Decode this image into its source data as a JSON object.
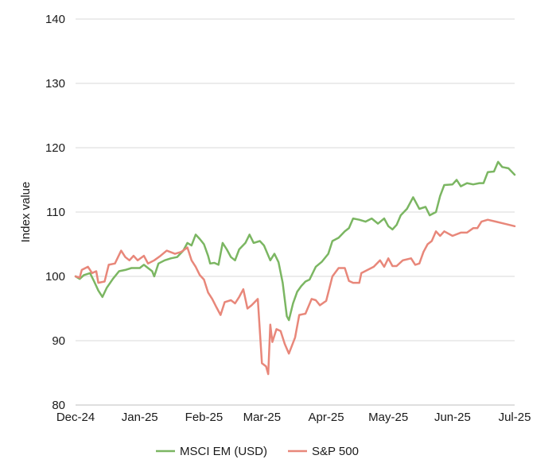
{
  "chart_data": {
    "type": "line",
    "ylabel": "Index value",
    "ylim": [
      80,
      140
    ],
    "yticks": [
      80,
      90,
      100,
      110,
      120,
      130,
      140
    ],
    "xlim": [
      "2024-12-01",
      "2025-07-01"
    ],
    "xticks": [
      {
        "date": "2024-12-01",
        "label": "Dec-24"
      },
      {
        "date": "2025-01-01",
        "label": "Jan-25"
      },
      {
        "date": "2025-02-01",
        "label": "Feb-25"
      },
      {
        "date": "2025-03-01",
        "label": "Mar-25"
      },
      {
        "date": "2025-04-01",
        "label": "Apr-25"
      },
      {
        "date": "2025-05-01",
        "label": "May-25"
      },
      {
        "date": "2025-06-01",
        "label": "Jun-25"
      },
      {
        "date": "2025-07-01",
        "label": "Jul-25"
      }
    ],
    "grid": {
      "horizontal": true,
      "vertical": false
    },
    "legend": {
      "position": "bottom"
    },
    "series": [
      {
        "name": "MSCI EM (USD)",
        "color": "#7bb662",
        "points": [
          [
            "2024-12-01",
            100.0
          ],
          [
            "2024-12-03",
            99.6
          ],
          [
            "2024-12-05",
            100.2
          ],
          [
            "2024-12-08",
            100.5
          ],
          [
            "2024-12-10",
            99.2
          ],
          [
            "2024-12-12",
            97.8
          ],
          [
            "2024-12-14",
            96.8
          ],
          [
            "2024-12-16",
            98.2
          ],
          [
            "2024-12-19",
            99.6
          ],
          [
            "2024-12-22",
            100.8
          ],
          [
            "2024-12-25",
            101.0
          ],
          [
            "2024-12-28",
            101.3
          ],
          [
            "2025-01-01",
            101.3
          ],
          [
            "2025-01-03",
            101.8
          ],
          [
            "2025-01-05",
            101.3
          ],
          [
            "2025-01-07",
            100.8
          ],
          [
            "2025-01-08",
            100.0
          ],
          [
            "2025-01-10",
            102.0
          ],
          [
            "2025-01-13",
            102.5
          ],
          [
            "2025-01-16",
            102.8
          ],
          [
            "2025-01-19",
            103.0
          ],
          [
            "2025-01-22",
            104.0
          ],
          [
            "2025-01-24",
            105.2
          ],
          [
            "2025-01-26",
            104.8
          ],
          [
            "2025-01-28",
            106.5
          ],
          [
            "2025-01-30",
            105.8
          ],
          [
            "2025-02-01",
            105.0
          ],
          [
            "2025-02-03",
            103.2
          ],
          [
            "2025-02-04",
            102.0
          ],
          [
            "2025-02-06",
            102.1
          ],
          [
            "2025-02-08",
            101.8
          ],
          [
            "2025-02-10",
            105.2
          ],
          [
            "2025-02-12",
            104.2
          ],
          [
            "2025-02-14",
            103.0
          ],
          [
            "2025-02-16",
            102.5
          ],
          [
            "2025-02-18",
            104.2
          ],
          [
            "2025-02-21",
            105.2
          ],
          [
            "2025-02-23",
            106.5
          ],
          [
            "2025-02-25",
            105.2
          ],
          [
            "2025-02-28",
            105.5
          ],
          [
            "2025-03-02",
            104.8
          ],
          [
            "2025-03-05",
            102.5
          ],
          [
            "2025-03-07",
            103.5
          ],
          [
            "2025-03-09",
            102.2
          ],
          [
            "2025-03-11",
            99.0
          ],
          [
            "2025-03-13",
            93.8
          ],
          [
            "2025-03-14",
            93.2
          ],
          [
            "2025-03-16",
            95.8
          ],
          [
            "2025-03-18",
            97.6
          ],
          [
            "2025-03-20",
            98.5
          ],
          [
            "2025-03-22",
            99.2
          ],
          [
            "2025-03-24",
            99.5
          ],
          [
            "2025-03-27",
            101.5
          ],
          [
            "2025-03-30",
            102.3
          ],
          [
            "2025-04-02",
            103.5
          ],
          [
            "2025-04-04",
            105.5
          ],
          [
            "2025-04-07",
            106.0
          ],
          [
            "2025-04-10",
            107.0
          ],
          [
            "2025-04-12",
            107.5
          ],
          [
            "2025-04-14",
            109.0
          ],
          [
            "2025-04-17",
            108.8
          ],
          [
            "2025-04-20",
            108.5
          ],
          [
            "2025-04-23",
            109.0
          ],
          [
            "2025-04-26",
            108.2
          ],
          [
            "2025-04-29",
            109.0
          ],
          [
            "2025-05-01",
            107.8
          ],
          [
            "2025-05-03",
            107.3
          ],
          [
            "2025-05-05",
            108.0
          ],
          [
            "2025-05-07",
            109.5
          ],
          [
            "2025-05-10",
            110.5
          ],
          [
            "2025-05-13",
            112.3
          ],
          [
            "2025-05-16",
            110.5
          ],
          [
            "2025-05-19",
            110.8
          ],
          [
            "2025-05-21",
            109.5
          ],
          [
            "2025-05-24",
            110.0
          ],
          [
            "2025-05-26",
            112.5
          ],
          [
            "2025-05-28",
            114.2
          ],
          [
            "2025-06-01",
            114.3
          ],
          [
            "2025-06-03",
            115.0
          ],
          [
            "2025-06-05",
            114.0
          ],
          [
            "2025-06-08",
            114.5
          ],
          [
            "2025-06-11",
            114.3
          ],
          [
            "2025-06-14",
            114.5
          ],
          [
            "2025-06-16",
            114.5
          ],
          [
            "2025-06-18",
            116.2
          ],
          [
            "2025-06-21",
            116.3
          ],
          [
            "2025-06-23",
            117.8
          ],
          [
            "2025-06-25",
            117.0
          ],
          [
            "2025-06-28",
            116.8
          ],
          [
            "2025-07-01",
            115.8
          ]
        ]
      },
      {
        "name": "S&P 500",
        "color": "#e8877a",
        "points": [
          [
            "2024-12-01",
            100.0
          ],
          [
            "2024-12-03",
            99.8
          ],
          [
            "2024-12-04",
            101.0
          ],
          [
            "2024-12-07",
            101.5
          ],
          [
            "2024-12-09",
            100.5
          ],
          [
            "2024-12-11",
            100.8
          ],
          [
            "2024-12-12",
            99.0
          ],
          [
            "2024-12-15",
            99.2
          ],
          [
            "2024-12-17",
            101.8
          ],
          [
            "2024-12-20",
            102.0
          ],
          [
            "2024-12-23",
            104.0
          ],
          [
            "2024-12-25",
            103.0
          ],
          [
            "2024-12-27",
            102.5
          ],
          [
            "2024-12-29",
            103.2
          ],
          [
            "2024-12-31",
            102.5
          ],
          [
            "2025-01-03",
            103.2
          ],
          [
            "2025-01-05",
            102.0
          ],
          [
            "2025-01-08",
            102.5
          ],
          [
            "2025-01-11",
            103.2
          ],
          [
            "2025-01-14",
            104.0
          ],
          [
            "2025-01-18",
            103.5
          ],
          [
            "2025-01-21",
            103.8
          ],
          [
            "2025-01-24",
            104.5
          ],
          [
            "2025-01-26",
            102.5
          ],
          [
            "2025-01-28",
            101.5
          ],
          [
            "2025-01-30",
            100.2
          ],
          [
            "2025-02-01",
            99.5
          ],
          [
            "2025-02-03",
            97.5
          ],
          [
            "2025-02-05",
            96.5
          ],
          [
            "2025-02-07",
            95.2
          ],
          [
            "2025-02-09",
            94.0
          ],
          [
            "2025-02-11",
            96.0
          ],
          [
            "2025-02-14",
            96.3
          ],
          [
            "2025-02-16",
            95.8
          ],
          [
            "2025-02-18",
            96.8
          ],
          [
            "2025-02-20",
            98.0
          ],
          [
            "2025-02-22",
            95.0
          ],
          [
            "2025-02-24",
            95.5
          ],
          [
            "2025-02-27",
            96.5
          ],
          [
            "2025-03-01",
            86.5
          ],
          [
            "2025-03-03",
            86.0
          ],
          [
            "2025-03-04",
            84.8
          ],
          [
            "2025-03-05",
            92.5
          ],
          [
            "2025-03-06",
            89.8
          ],
          [
            "2025-03-08",
            91.8
          ],
          [
            "2025-03-10",
            91.5
          ],
          [
            "2025-03-12",
            89.5
          ],
          [
            "2025-03-14",
            88.0
          ],
          [
            "2025-03-17",
            90.5
          ],
          [
            "2025-03-19",
            94.0
          ],
          [
            "2025-03-22",
            94.2
          ],
          [
            "2025-03-25",
            96.5
          ],
          [
            "2025-03-27",
            96.3
          ],
          [
            "2025-03-29",
            95.5
          ],
          [
            "2025-04-01",
            96.2
          ],
          [
            "2025-04-04",
            100.0
          ],
          [
            "2025-04-07",
            101.3
          ],
          [
            "2025-04-10",
            101.3
          ],
          [
            "2025-04-12",
            99.3
          ],
          [
            "2025-04-14",
            99.0
          ],
          [
            "2025-04-17",
            99.0
          ],
          [
            "2025-04-18",
            100.5
          ],
          [
            "2025-04-21",
            101.0
          ],
          [
            "2025-04-24",
            101.5
          ],
          [
            "2025-04-27",
            102.5
          ],
          [
            "2025-04-29",
            101.5
          ],
          [
            "2025-05-01",
            102.8
          ],
          [
            "2025-05-03",
            101.6
          ],
          [
            "2025-05-05",
            101.6
          ],
          [
            "2025-05-08",
            102.5
          ],
          [
            "2025-05-12",
            102.8
          ],
          [
            "2025-05-14",
            101.8
          ],
          [
            "2025-05-16",
            102.0
          ],
          [
            "2025-05-18",
            103.8
          ],
          [
            "2025-05-20",
            105.0
          ],
          [
            "2025-05-22",
            105.5
          ],
          [
            "2025-05-24",
            107.0
          ],
          [
            "2025-05-26",
            106.3
          ],
          [
            "2025-05-28",
            107.0
          ],
          [
            "2025-06-01",
            106.3
          ],
          [
            "2025-06-05",
            106.8
          ],
          [
            "2025-06-08",
            106.8
          ],
          [
            "2025-06-11",
            107.5
          ],
          [
            "2025-06-13",
            107.5
          ],
          [
            "2025-06-15",
            108.5
          ],
          [
            "2025-06-18",
            108.8
          ],
          [
            "2025-06-22",
            108.5
          ],
          [
            "2025-07-01",
            107.8
          ]
        ]
      }
    ]
  }
}
